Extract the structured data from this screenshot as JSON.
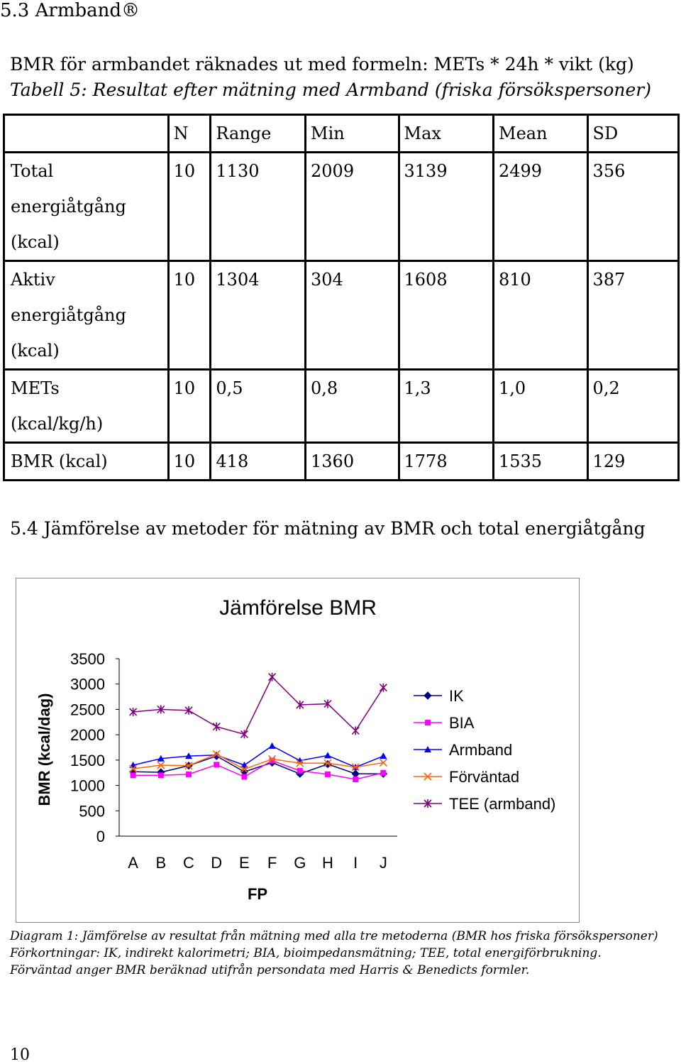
{
  "section_53_heading": "5.3 Armband®",
  "formula_text": "BMR för armbandet räknades ut med formeln: METs * 24h * vikt (kg)",
  "table_caption": "Tabell 5: Resultat efter mätning med Armband (friska försökspersoner)",
  "table": {
    "headers": [
      "N",
      "Range",
      "Min",
      "Max",
      "Mean",
      "SD"
    ],
    "rows": [
      {
        "label": "Total energiåtgång (kcal)",
        "values": [
          "10",
          "1130",
          "2009",
          "3139",
          "2499",
          "356"
        ]
      },
      {
        "label": "Aktiv energiåtgång (kcal)",
        "values": [
          "10",
          "1304",
          "304",
          "1608",
          "810",
          "387"
        ]
      },
      {
        "label": "METs (kcal/kg/h)",
        "values": [
          "10",
          "0,5",
          "0,8",
          "1,3",
          "1,0",
          "0,2"
        ]
      },
      {
        "label": "BMR (kcal)",
        "values": [
          "10",
          "418",
          "1360",
          "1778",
          "1535",
          "129"
        ]
      }
    ]
  },
  "section_54_heading": "5.4 Jämförelse av metoder för mätning av BMR och total energiåtgång",
  "chart_data": {
    "type": "line",
    "title": "Jämförelse BMR",
    "xlabel": "FP",
    "ylabel": "BMR (kcal/dag)",
    "ylim": [
      0,
      3500
    ],
    "yticks": [
      "0",
      "500",
      "1000",
      "1500",
      "2000",
      "2500",
      "3000",
      "3500"
    ],
    "categories": [
      "A",
      "B",
      "C",
      "D",
      "E",
      "F",
      "G",
      "H",
      "I",
      "J"
    ],
    "series": [
      {
        "name": "IK",
        "color": "#000080",
        "marker": "diamond",
        "values": [
          1270,
          1260,
          1390,
          1580,
          1270,
          1450,
          1230,
          1420,
          1230,
          1230
        ]
      },
      {
        "name": "BIA",
        "color": "#ff00ff",
        "marker": "square",
        "values": [
          1200,
          1200,
          1220,
          1410,
          1170,
          1490,
          1290,
          1220,
          1120,
          1250
        ]
      },
      {
        "name": "Armband",
        "color": "#0000ff",
        "marker": "triangle",
        "values": [
          1400,
          1530,
          1580,
          1600,
          1400,
          1780,
          1490,
          1590,
          1360,
          1580
        ]
      },
      {
        "name": "Förväntad",
        "color": "#ff6600",
        "marker": "x",
        "values": [
          1330,
          1400,
          1390,
          1620,
          1320,
          1520,
          1440,
          1440,
          1360,
          1450
        ]
      },
      {
        "name": "TEE (armband)",
        "color": "#800080",
        "marker": "star",
        "values": [
          2450,
          2500,
          2480,
          2160,
          2010,
          3140,
          2590,
          2610,
          2080,
          2930
        ]
      }
    ]
  },
  "diagram_notes": [
    "Diagram 1: Jämförelse av resultat från mätning med alla tre metoderna (BMR hos friska försökspersoner)",
    "Förkortningar: IK, indirekt kalorimetri; BIA, bioimpedansmätning; TEE, total energiförbrukning.",
    "Förväntad anger BMR beräknad utifrån persondata med Harris & Benedicts formler."
  ],
  "page_number": "10"
}
